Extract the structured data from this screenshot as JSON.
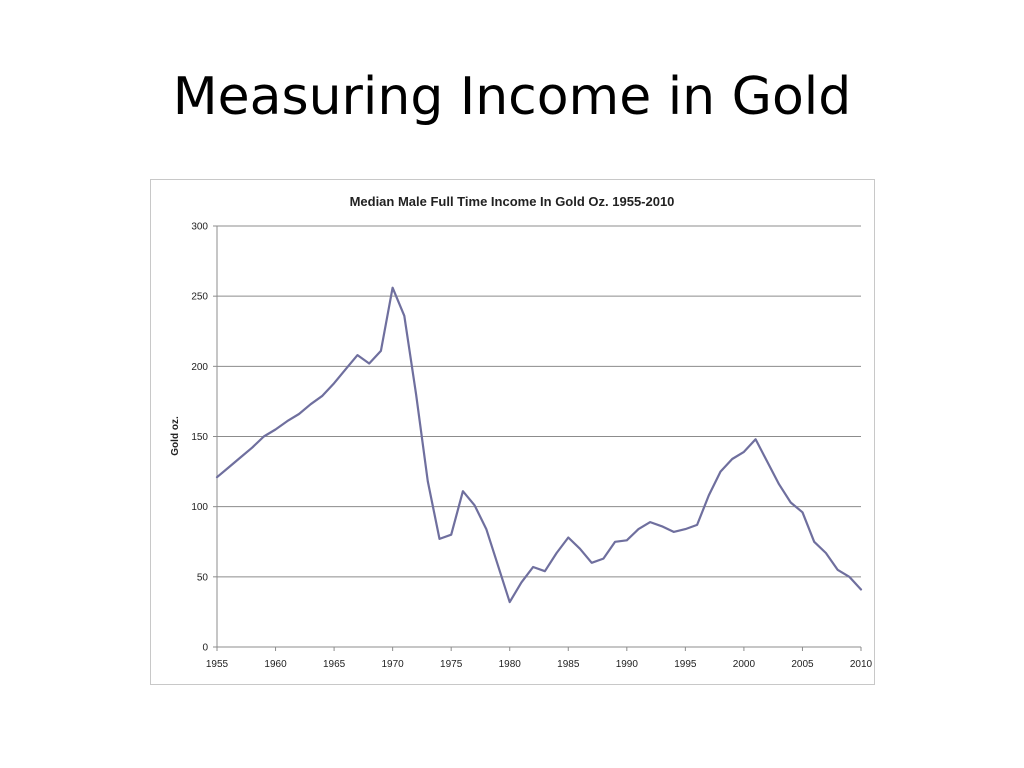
{
  "slide": {
    "title": "Measuring Income in Gold"
  },
  "chart_data": {
    "type": "line",
    "title": "Median Male Full Time Income In Gold Oz. 1955-2010",
    "xlabel": "",
    "ylabel": "Gold oz.",
    "xlim": [
      1955,
      2010
    ],
    "ylim": [
      0,
      300
    ],
    "x_ticks": [
      1955,
      1960,
      1965,
      1970,
      1975,
      1980,
      1985,
      1990,
      1995,
      2000,
      2005,
      2010
    ],
    "y_ticks": [
      0,
      50,
      100,
      150,
      200,
      250,
      300
    ],
    "grid": "horizontal",
    "legend": "none",
    "series": [
      {
        "color": "#6f6f9e",
        "x": [
          1955,
          1956,
          1957,
          1958,
          1959,
          1960,
          1961,
          1962,
          1963,
          1964,
          1965,
          1966,
          1967,
          1968,
          1969,
          1970,
          1971,
          1972,
          1973,
          1974,
          1975,
          1976,
          1977,
          1978,
          1979,
          1980,
          1981,
          1982,
          1983,
          1984,
          1985,
          1986,
          1987,
          1988,
          1989,
          1990,
          1991,
          1992,
          1993,
          1994,
          1995,
          1996,
          1997,
          1998,
          1999,
          2000,
          2001,
          2002,
          2003,
          2004,
          2005,
          2006,
          2007,
          2008,
          2009,
          2010
        ],
        "y": [
          121,
          128,
          135,
          142,
          150,
          155,
          161,
          166,
          173,
          179,
          188,
          198,
          208,
          202,
          211,
          256,
          236,
          180,
          118,
          77,
          80,
          111,
          101,
          84,
          58,
          32,
          46,
          57,
          54,
          67,
          78,
          70,
          60,
          63,
          75,
          76,
          84,
          89,
          86,
          82,
          84,
          87,
          108,
          125,
          134,
          139,
          148,
          132,
          116,
          103,
          96,
          75,
          67,
          55,
          50,
          41
        ]
      }
    ]
  }
}
